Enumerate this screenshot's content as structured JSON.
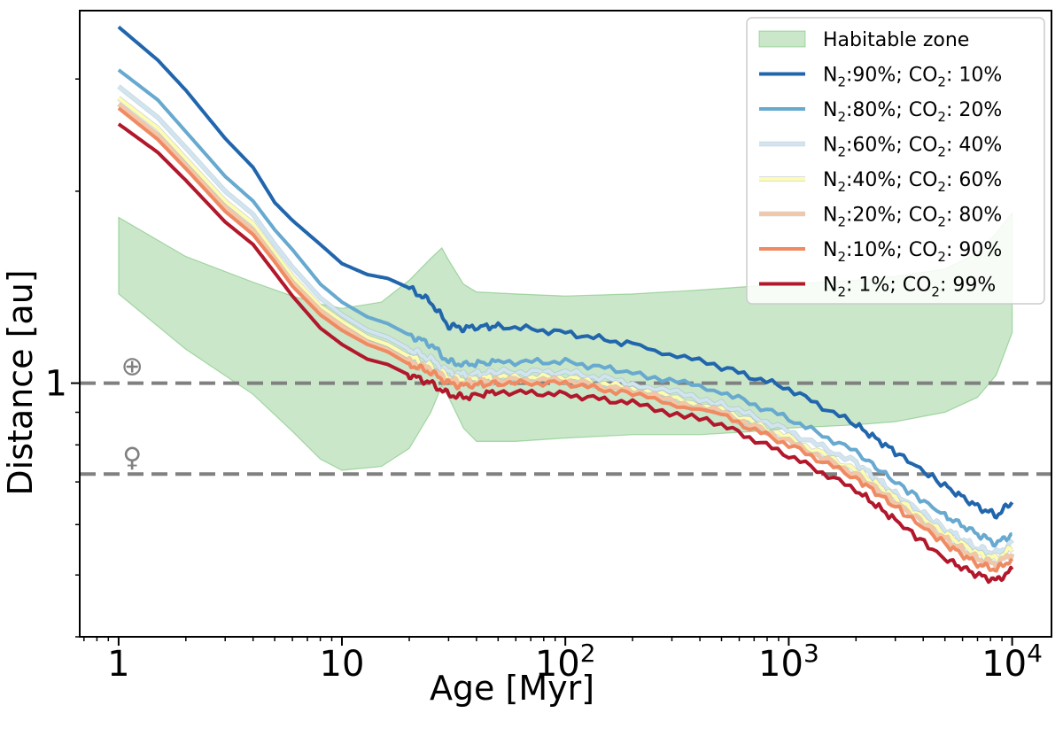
{
  "chart_data": {
    "type": "line",
    "xlabel": "Age [Myr]",
    "ylabel": "Distance [au]",
    "xscale": "log",
    "yscale": "log",
    "xlim": [
      0.67,
      15000
    ],
    "ylim": [
      0.4,
      3.84
    ],
    "xticks": [
      {
        "value": 1,
        "label": "1"
      },
      {
        "value": 10,
        "label": "10"
      },
      {
        "value": 100,
        "label": "10",
        "exp": "2"
      },
      {
        "value": 1000,
        "label": "10",
        "exp": "3"
      },
      {
        "value": 10000,
        "label": "10",
        "exp": "4"
      }
    ],
    "yticks": [
      {
        "value": 1,
        "label": "1"
      }
    ],
    "reference_lines": [
      {
        "name": "Earth",
        "symbol": "⊕",
        "y": 1.0,
        "color": "#808080"
      },
      {
        "name": "Venus",
        "symbol": "♀",
        "y": 0.72,
        "color": "#808080"
      }
    ],
    "habitable_zone": {
      "label": "Habitable zone",
      "color": "#2ca02c",
      "x": [
        1,
        2,
        4,
        6,
        8,
        10,
        15,
        20,
        25,
        28,
        30,
        35,
        40,
        60,
        100,
        200,
        400,
        700,
        1000,
        2000,
        3000,
        5000,
        7000,
        8500,
        10000
      ],
      "outer": [
        1.82,
        1.58,
        1.44,
        1.37,
        1.33,
        1.31,
        1.34,
        1.45,
        1.57,
        1.63,
        1.56,
        1.43,
        1.39,
        1.38,
        1.37,
        1.38,
        1.4,
        1.42,
        1.43,
        1.45,
        1.47,
        1.51,
        1.6,
        1.72,
        1.85
      ],
      "inner": [
        1.38,
        1.13,
        0.96,
        0.84,
        0.76,
        0.73,
        0.74,
        0.79,
        0.9,
        0.99,
        0.95,
        0.85,
        0.81,
        0.81,
        0.82,
        0.83,
        0.83,
        0.84,
        0.85,
        0.86,
        0.87,
        0.9,
        0.95,
        1.03,
        1.2
      ]
    },
    "x": [
      1,
      1.5,
      2,
      3,
      4,
      5,
      6,
      8,
      10,
      13,
      16,
      20,
      25,
      30,
      35,
      50,
      100,
      200,
      500,
      1000,
      2000,
      3000,
      5000,
      7000,
      8500,
      10000
    ],
    "series": [
      {
        "name": "N2:90%; CO2: 10%",
        "lbl": "N",
        "sub1": "2",
        "mid": ":90%; CO",
        "sub2": "2",
        "end": ": 10%",
        "color": "#2166ac",
        "width": 4,
        "values": [
          3.62,
          3.21,
          2.88,
          2.42,
          2.18,
          1.92,
          1.8,
          1.65,
          1.54,
          1.48,
          1.46,
          1.41,
          1.34,
          1.23,
          1.22,
          1.23,
          1.2,
          1.15,
          1.06,
          0.98,
          0.86,
          0.78,
          0.69,
          0.64,
          0.62,
          0.65
        ]
      },
      {
        "name": "N2:80%; CO2: 20%",
        "lbl": "N",
        "sub1": "2",
        "mid": ":80%; CO",
        "sub2": "2",
        "end": ": 20%",
        "color": "#67a9cf",
        "width": 4,
        "values": [
          3.1,
          2.78,
          2.48,
          2.11,
          1.93,
          1.74,
          1.62,
          1.43,
          1.34,
          1.27,
          1.24,
          1.19,
          1.15,
          1.08,
          1.07,
          1.08,
          1.08,
          1.04,
          0.97,
          0.88,
          0.78,
          0.7,
          0.62,
          0.58,
          0.56,
          0.58
        ]
      },
      {
        "name": "N2:60%; CO2: 40%",
        "lbl": "N",
        "sub1": "2",
        "mid": ":60%; CO",
        "sub2": "2",
        "end": ": 40%",
        "color": "#d1e5f0",
        "width": 4,
        "values": [
          2.92,
          2.61,
          2.34,
          2.0,
          1.84,
          1.65,
          1.52,
          1.36,
          1.28,
          1.21,
          1.18,
          1.13,
          1.09,
          1.04,
          1.03,
          1.04,
          1.04,
          1.0,
          0.93,
          0.84,
          0.75,
          0.67,
          0.59,
          0.55,
          0.54,
          0.56
        ]
      },
      {
        "name": "N2:40%; CO2: 60%",
        "lbl": "N",
        "sub1": "2",
        "mid": ":40%; CO",
        "sub2": "2",
        "end": ": 60%",
        "color": "#fefcae",
        "width": 4,
        "values": [
          2.8,
          2.51,
          2.25,
          1.93,
          1.78,
          1.6,
          1.47,
          1.32,
          1.25,
          1.18,
          1.15,
          1.1,
          1.06,
          1.02,
          1.01,
          1.02,
          1.02,
          0.98,
          0.91,
          0.82,
          0.73,
          0.66,
          0.58,
          0.54,
          0.53,
          0.55
        ]
      },
      {
        "name": "N2:20%; CO2: 80%",
        "lbl": "N",
        "sub1": "2",
        "mid": ":20%; CO",
        "sub2": "2",
        "end": ": 80%",
        "color": "#f4c6a6",
        "width": 4,
        "values": [
          2.74,
          2.45,
          2.2,
          1.89,
          1.74,
          1.57,
          1.44,
          1.3,
          1.23,
          1.16,
          1.13,
          1.08,
          1.05,
          1.01,
          1.0,
          1.01,
          1.01,
          0.97,
          0.9,
          0.81,
          0.72,
          0.65,
          0.57,
          0.53,
          0.52,
          0.54
        ]
      },
      {
        "name": "N2:10%; CO2: 90%",
        "lbl": "N",
        "sub1": "2",
        "mid": ":10%; CO",
        "sub2": "2",
        "end": ": 90%",
        "color": "#ef8a62",
        "width": 4,
        "values": [
          2.7,
          2.41,
          2.17,
          1.86,
          1.71,
          1.55,
          1.42,
          1.28,
          1.21,
          1.15,
          1.12,
          1.07,
          1.04,
          1.0,
          0.99,
          1.0,
          1.0,
          0.96,
          0.89,
          0.8,
          0.71,
          0.64,
          0.56,
          0.52,
          0.51,
          0.53
        ]
      },
      {
        "name": "N2: 1%; CO2: 99%",
        "lbl": "N",
        "sub1": "2",
        "mid": ": 1%; CO",
        "sub2": "2",
        "end": ": 99%",
        "color": "#b2182b",
        "width": 4,
        "values": [
          2.55,
          2.3,
          2.08,
          1.79,
          1.65,
          1.49,
          1.37,
          1.22,
          1.15,
          1.09,
          1.07,
          1.03,
          1.0,
          0.96,
          0.95,
          0.97,
          0.96,
          0.93,
          0.86,
          0.77,
          0.68,
          0.61,
          0.53,
          0.5,
          0.49,
          0.51
        ]
      }
    ],
    "legend": {
      "placement": "top-right"
    }
  }
}
